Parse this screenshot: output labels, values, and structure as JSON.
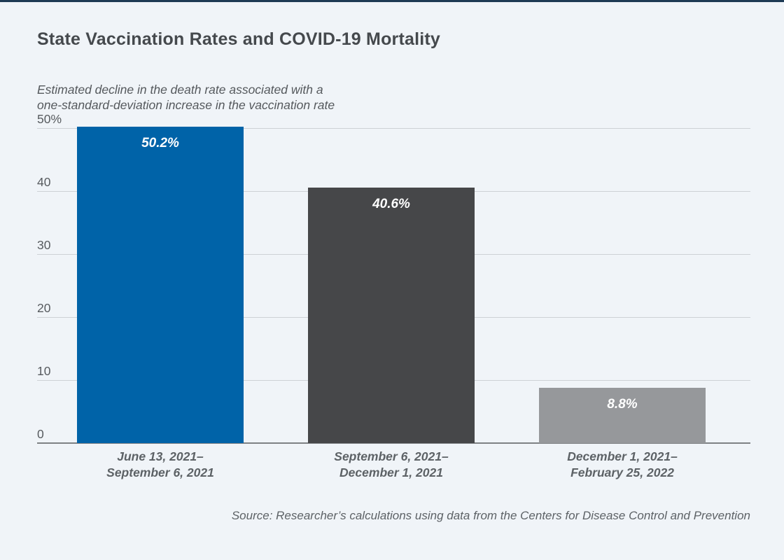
{
  "page": {
    "title": "State Vaccination Rates and COVID-19 Mortality",
    "subtitle_line1": "Estimated decline in the death rate associated with a",
    "subtitle_line2": "one-standard-deviation increase in the vaccination rate",
    "source": "Source: Researcher’s calculations using data from the Centers for Disease Control and Prevention"
  },
  "colors": {
    "background": "#f0f4f8",
    "top_rule": "#1d3a54",
    "gridline": "#ced1d6",
    "baseline": "#7e8184",
    "bar_blue": "#0063a8",
    "bar_dark_gray": "#464749",
    "bar_light_gray": "#96989b",
    "text_dark": "#45494d",
    "text_muted": "#5d6266"
  },
  "chart_data": {
    "type": "bar",
    "title": "State Vaccination Rates and COVID-19 Mortality",
    "subtitle": "Estimated decline in the death rate associated with a one-standard-deviation increase in the vaccination rate",
    "categories": [
      [
        "June 13, 2021–",
        "September 6, 2021"
      ],
      [
        "September 6, 2021–",
        "December 1, 2021"
      ],
      [
        "December 1, 2021–",
        "February 25, 2022"
      ]
    ],
    "values": [
      50.2,
      40.6,
      8.8
    ],
    "value_labels": [
      "50.2%",
      "40.6%",
      "8.8%"
    ],
    "bar_colors": [
      "#0063a8",
      "#464749",
      "#96989b"
    ],
    "ylim": [
      0,
      50
    ],
    "yticks": [
      {
        "value": 0,
        "label": "0"
      },
      {
        "value": 10,
        "label": "10"
      },
      {
        "value": 20,
        "label": "20"
      },
      {
        "value": 30,
        "label": "30"
      },
      {
        "value": 40,
        "label": "40"
      },
      {
        "value": 50,
        "label": "50%"
      }
    ],
    "grid": true,
    "legend": null,
    "xlabel": "",
    "ylabel": "",
    "source": "Source: Researcher’s calculations using data from the Centers for Disease Control and Prevention"
  }
}
